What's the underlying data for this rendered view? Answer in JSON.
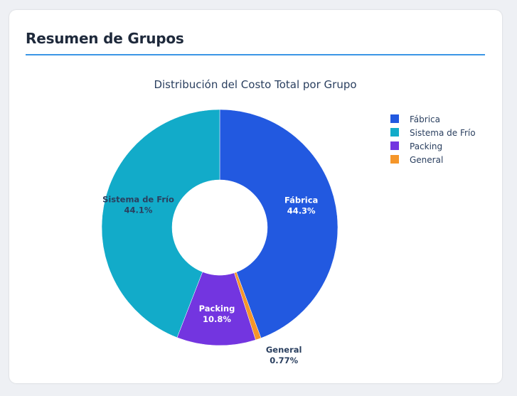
{
  "card": {
    "title": "Resumen de Grupos"
  },
  "chart_data": {
    "type": "pie",
    "hole": true,
    "title": "Distribución del Costo Total por Grupo",
    "categories": [
      "Fábrica",
      "Sistema de Frío",
      "Packing",
      "General"
    ],
    "values": [
      44.3,
      44.1,
      10.8,
      0.77
    ],
    "labels": [
      "44.3%",
      "44.1%",
      "10.8%",
      "0.77%"
    ],
    "colors": [
      "#2259e0",
      "#12abc9",
      "#7335e0",
      "#f5962a"
    ],
    "slice_order_clockwise_from_top": [
      "Fábrica",
      "General",
      "Packing",
      "Sistema de Frío"
    ],
    "legend_placement": "top-right"
  }
}
